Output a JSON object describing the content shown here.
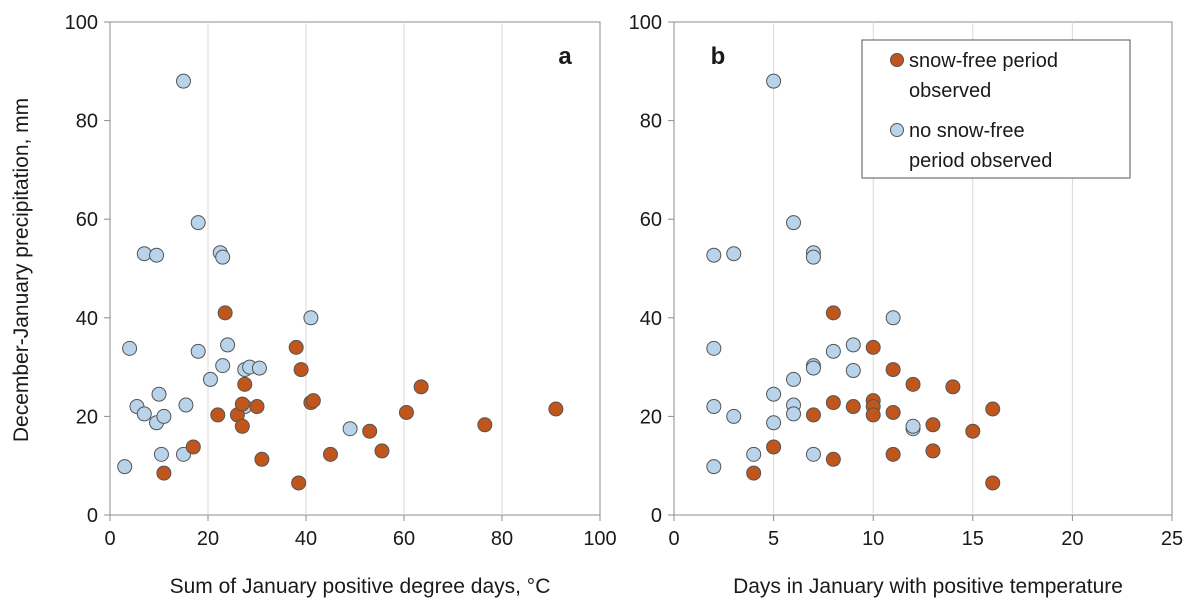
{
  "chart_data": [
    {
      "type": "scatter",
      "panel_label": "a",
      "xlabel": "Sum of January positive degree days, °C",
      "ylabel": "December-January  precipitation, mm",
      "xlim": [
        0,
        100
      ],
      "ylim": [
        0,
        100
      ],
      "xticks": [
        "0",
        "20",
        "40",
        "60",
        "80",
        "100"
      ],
      "yticks": [
        "0",
        "20",
        "40",
        "60",
        "80",
        "100"
      ],
      "grid": "vertical",
      "series": [
        {
          "name": "snow-free period observed",
          "color": "#c0561b",
          "points": [
            [
              11,
              8.5
            ],
            [
              17,
              13.8
            ],
            [
              22,
              20.3
            ],
            [
              23.5,
              41
            ],
            [
              26,
              20.3
            ],
            [
              27,
              22.5
            ],
            [
              27,
              18
            ],
            [
              27.5,
              26.5
            ],
            [
              30,
              22
            ],
            [
              31,
              11.3
            ],
            [
              38,
              34
            ],
            [
              38.5,
              6.5
            ],
            [
              39,
              29.5
            ],
            [
              41,
              22.8
            ],
            [
              41.5,
              23.2
            ],
            [
              45,
              12.3
            ],
            [
              53,
              17
            ],
            [
              55.5,
              13
            ],
            [
              60.5,
              20.8
            ],
            [
              63.5,
              26
            ],
            [
              76.5,
              18.3
            ],
            [
              91,
              21.5
            ]
          ]
        },
        {
          "name": "no  snow-free period observed",
          "color": "#b9d3ea",
          "points": [
            [
              3,
              9.8
            ],
            [
              4,
              33.8
            ],
            [
              5.5,
              22
            ],
            [
              7,
              20.5
            ],
            [
              7,
              53
            ],
            [
              9.5,
              18.7
            ],
            [
              9.5,
              52.7
            ],
            [
              10,
              24.5
            ],
            [
              10.5,
              12.3
            ],
            [
              11,
              20
            ],
            [
              15,
              88
            ],
            [
              15,
              12.3
            ],
            [
              15.5,
              22.3
            ],
            [
              18,
              59.3
            ],
            [
              18,
              33.2
            ],
            [
              20.5,
              27.5
            ],
            [
              22.5,
              53.2
            ],
            [
              23,
              52.3
            ],
            [
              23,
              30.3
            ],
            [
              24,
              34.5
            ],
            [
              27.5,
              22
            ],
            [
              27.5,
              29.5
            ],
            [
              28.5,
              30
            ],
            [
              30.5,
              29.8
            ],
            [
              41,
              40
            ],
            [
              49,
              17.5
            ]
          ]
        }
      ]
    },
    {
      "type": "scatter",
      "panel_label": "b",
      "xlabel": "Days in January with positive temperature",
      "xlim": [
        0,
        25
      ],
      "ylim": [
        0,
        100
      ],
      "xticks": [
        "0",
        "5",
        "10",
        "15",
        "20",
        "25"
      ],
      "yticks": [
        "0",
        "20",
        "40",
        "60",
        "80",
        "100"
      ],
      "grid": "vertical",
      "legend_position": "top-right",
      "series": [
        {
          "name": "snow-free period observed",
          "color": "#c0561b",
          "points": [
            [
              4,
              8.5
            ],
            [
              5,
              13.8
            ],
            [
              7,
              20.3
            ],
            [
              8,
              41
            ],
            [
              8,
              22.8
            ],
            [
              8,
              11.3
            ],
            [
              9,
              22
            ],
            [
              10,
              34
            ],
            [
              10,
              23.2
            ],
            [
              10,
              22
            ],
            [
              10,
              20.3
            ],
            [
              11,
              29.5
            ],
            [
              11,
              20.8
            ],
            [
              11,
              12.3
            ],
            [
              12,
              26.5
            ],
            [
              13,
              18.3
            ],
            [
              13,
              13
            ],
            [
              14,
              26
            ],
            [
              15,
              17
            ],
            [
              16,
              21.5
            ],
            [
              16,
              6.5
            ]
          ]
        },
        {
          "name": "no  snow-free period observed",
          "color": "#b9d3ea",
          "points": [
            [
              2,
              52.7
            ],
            [
              2,
              33.8
            ],
            [
              2,
              22
            ],
            [
              2,
              9.8
            ],
            [
              3,
              53
            ],
            [
              3,
              20
            ],
            [
              4,
              12.3
            ],
            [
              5,
              88
            ],
            [
              5,
              24.5
            ],
            [
              5,
              18.7
            ],
            [
              6,
              59.3
            ],
            [
              6,
              27.5
            ],
            [
              6,
              22.3
            ],
            [
              6,
              20.5
            ],
            [
              7,
              53.2
            ],
            [
              7,
              52.3
            ],
            [
              7,
              30.3
            ],
            [
              7,
              29.8
            ],
            [
              7,
              12.3
            ],
            [
              8,
              33.2
            ],
            [
              9,
              34.5
            ],
            [
              9,
              29.3
            ],
            [
              11,
              40
            ],
            [
              12,
              17.5
            ],
            [
              12,
              18
            ]
          ]
        }
      ]
    }
  ],
  "legend": {
    "items": [
      {
        "lines": [
          "snow-free period",
          "observed"
        ],
        "color": "#c0561b"
      },
      {
        "lines": [
          "no  snow-free",
          "period observed"
        ],
        "color": "#b9d3ea"
      }
    ]
  }
}
